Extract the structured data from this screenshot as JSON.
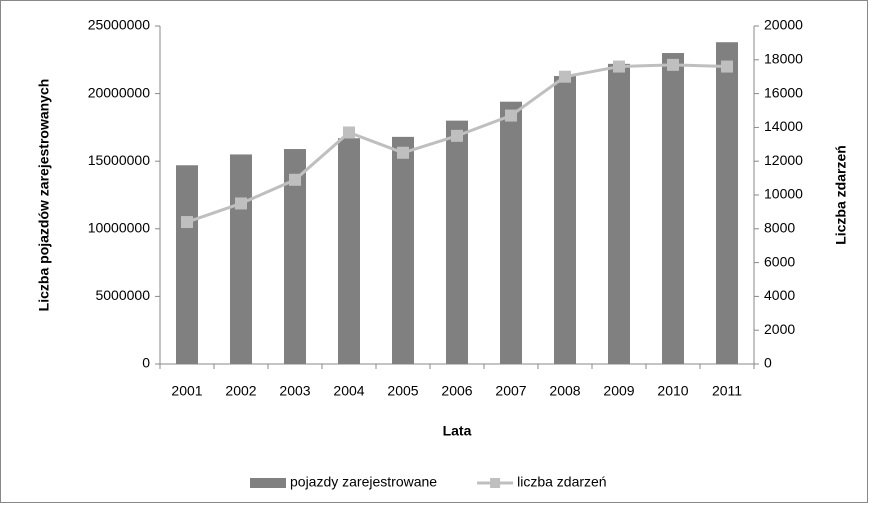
{
  "chart_data": {
    "type": "bar",
    "categories": [
      "2001",
      "2002",
      "2003",
      "2004",
      "2005",
      "2006",
      "2007",
      "2008",
      "2009",
      "2010",
      "2011"
    ],
    "series": [
      {
        "name": "pojazdy zarejestrowane",
        "type": "bar",
        "color": "#808080",
        "values": [
          14700000,
          15500000,
          15900000,
          16700000,
          16800000,
          18000000,
          19400000,
          21300000,
          22200000,
          23000000,
          23800000
        ]
      },
      {
        "name": "liczba zdarzeń",
        "type": "line",
        "axis": "y2",
        "color": "#bfbfbf",
        "values": [
          8400,
          9500,
          10900,
          13700,
          12500,
          13500,
          14700,
          17000,
          17600,
          17700,
          17600
        ]
      }
    ],
    "ylabel": "Liczba pojazdów  zarejestrowanych",
    "y2label": "Liczba zdarzeń",
    "xlabel": "Lata",
    "ylim": [
      0,
      25000000
    ],
    "yticks": [
      0,
      5000000,
      10000000,
      15000000,
      20000000,
      25000000
    ],
    "y2lim": [
      0,
      20000
    ],
    "y2ticks": [
      0,
      2000,
      4000,
      6000,
      8000,
      10000,
      12000,
      14000,
      16000,
      18000,
      20000
    ],
    "legend": "bottom"
  }
}
